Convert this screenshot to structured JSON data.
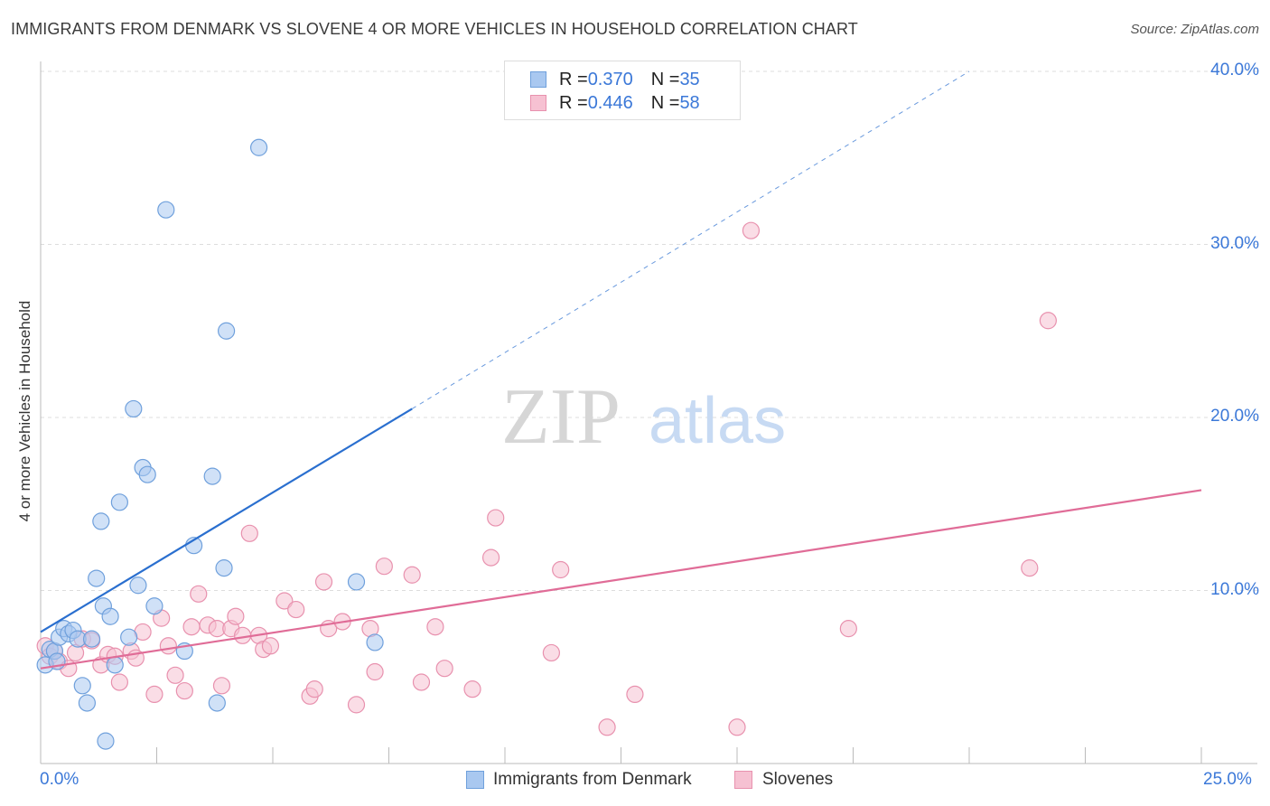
{
  "title": "IMMIGRANTS FROM DENMARK VS SLOVENE 4 OR MORE VEHICLES IN HOUSEHOLD CORRELATION CHART",
  "source": "Source: ZipAtlas.com",
  "watermark": {
    "zip": "ZIP",
    "atlas": "atlas"
  },
  "legend_top": {
    "rows": [
      {
        "r_label": "R = ",
        "r_value": "0.370",
        "n_label": "N = ",
        "n_value": "35"
      },
      {
        "r_label": "R = ",
        "r_value": "0.446",
        "n_label": "N = ",
        "n_value": "58"
      }
    ]
  },
  "colors": {
    "blue_fill": "#a9c8f0",
    "blue_stroke": "#6fa0dc",
    "blue_line": "#2a6fcf",
    "pink_fill": "#f6c1d2",
    "pink_stroke": "#e891ae",
    "pink_line": "#e06c97",
    "tick_text": "#3b78d8",
    "grid": "#dddddd"
  },
  "chart_data": {
    "type": "scatter",
    "title": "IMMIGRANTS FROM DENMARK VS SLOVENE 4 OR MORE VEHICLES IN HOUSEHOLD CORRELATION CHART",
    "xlabel": "",
    "ylabel": "4 or more Vehicles in Household",
    "xlim": [
      0,
      25
    ],
    "ylim": [
      0,
      40
    ],
    "x_tick_labels": [
      "0.0%",
      "25.0%"
    ],
    "y_tick_labels": [
      "10.0%",
      "20.0%",
      "30.0%",
      "40.0%"
    ],
    "y_ticks": [
      10,
      20,
      30,
      40
    ],
    "grid": true,
    "legend_position": "bottom",
    "series": [
      {
        "name": "Immigrants from Denmark",
        "color": "#a9c8f0",
        "trend": {
          "x": [
            0,
            8
          ],
          "y": [
            7.6,
            20.5
          ],
          "extended_to": [
            20,
            40
          ]
        },
        "points": [
          [
            0.1,
            5.7
          ],
          [
            0.2,
            6.6
          ],
          [
            0.3,
            6.5
          ],
          [
            0.35,
            5.9
          ],
          [
            0.4,
            7.3
          ],
          [
            0.5,
            7.8
          ],
          [
            0.6,
            7.5
          ],
          [
            0.7,
            7.7
          ],
          [
            0.8,
            7.2
          ],
          [
            0.9,
            4.5
          ],
          [
            1.0,
            3.5
          ],
          [
            1.1,
            7.2
          ],
          [
            1.2,
            10.7
          ],
          [
            1.3,
            14.0
          ],
          [
            1.35,
            9.1
          ],
          [
            1.4,
            1.3
          ],
          [
            1.5,
            8.5
          ],
          [
            1.6,
            5.7
          ],
          [
            1.7,
            15.1
          ],
          [
            1.9,
            7.3
          ],
          [
            2.0,
            20.5
          ],
          [
            2.1,
            10.3
          ],
          [
            2.2,
            17.1
          ],
          [
            2.3,
            16.7
          ],
          [
            2.45,
            9.1
          ],
          [
            2.7,
            32.0
          ],
          [
            3.1,
            6.5
          ],
          [
            3.3,
            12.6
          ],
          [
            3.7,
            16.6
          ],
          [
            3.8,
            3.5
          ],
          [
            3.95,
            11.3
          ],
          [
            4.0,
            25.0
          ],
          [
            4.7,
            35.6
          ],
          [
            6.8,
            10.5
          ],
          [
            7.2,
            7.0
          ]
        ]
      },
      {
        "name": "Slovenes",
        "color": "#f6c1d2",
        "trend": {
          "x": [
            0,
            25
          ],
          "y": [
            5.5,
            15.8
          ]
        },
        "points": [
          [
            0.1,
            6.8
          ],
          [
            0.2,
            6.2
          ],
          [
            0.3,
            6.5
          ],
          [
            0.4,
            5.9
          ],
          [
            0.6,
            5.5
          ],
          [
            0.75,
            6.4
          ],
          [
            0.9,
            7.2
          ],
          [
            1.1,
            7.1
          ],
          [
            1.3,
            5.7
          ],
          [
            1.45,
            6.3
          ],
          [
            1.6,
            6.2
          ],
          [
            1.7,
            4.7
          ],
          [
            1.95,
            6.5
          ],
          [
            2.05,
            6.1
          ],
          [
            2.2,
            7.6
          ],
          [
            2.45,
            4.0
          ],
          [
            2.6,
            8.4
          ],
          [
            2.75,
            6.8
          ],
          [
            2.9,
            5.1
          ],
          [
            3.1,
            4.2
          ],
          [
            3.25,
            7.9
          ],
          [
            3.4,
            9.8
          ],
          [
            3.6,
            8.0
          ],
          [
            3.8,
            7.8
          ],
          [
            3.9,
            4.5
          ],
          [
            4.1,
            7.8
          ],
          [
            4.2,
            8.5
          ],
          [
            4.35,
            7.4
          ],
          [
            4.5,
            13.3
          ],
          [
            4.7,
            7.4
          ],
          [
            4.8,
            6.6
          ],
          [
            4.95,
            6.8
          ],
          [
            5.25,
            9.4
          ],
          [
            5.5,
            8.9
          ],
          [
            5.8,
            3.9
          ],
          [
            5.9,
            4.3
          ],
          [
            6.1,
            10.5
          ],
          [
            6.2,
            7.8
          ],
          [
            6.5,
            8.2
          ],
          [
            6.8,
            3.4
          ],
          [
            7.1,
            7.8
          ],
          [
            7.2,
            5.3
          ],
          [
            7.4,
            11.4
          ],
          [
            8.0,
            10.9
          ],
          [
            8.2,
            4.7
          ],
          [
            8.5,
            7.9
          ],
          [
            8.7,
            5.5
          ],
          [
            9.3,
            4.3
          ],
          [
            9.7,
            11.9
          ],
          [
            9.8,
            14.2
          ],
          [
            11.0,
            6.4
          ],
          [
            11.2,
            11.2
          ],
          [
            12.2,
            2.1
          ],
          [
            12.8,
            4.0
          ],
          [
            15.0,
            2.1
          ],
          [
            15.3,
            30.8
          ],
          [
            17.4,
            7.8
          ],
          [
            21.3,
            11.3
          ],
          [
            21.7,
            25.6
          ]
        ]
      }
    ]
  },
  "bottom_legend": [
    {
      "label": "Immigrants from Denmark"
    },
    {
      "label": "Slovenes"
    }
  ]
}
